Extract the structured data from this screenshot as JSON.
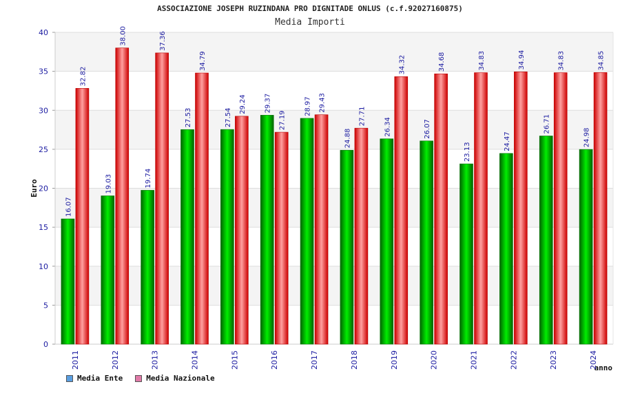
{
  "chart_data": {
    "type": "bar",
    "title": "ASSOCIAZIONE JOSEPH RUZINDANA PRO DIGNITADE ONLUS (c.f.92027160875)",
    "subtitle": "Media Importi",
    "xlabel": "anno",
    "ylabel": "Euro",
    "ylim": [
      0,
      40
    ],
    "yticks": [
      0,
      5,
      10,
      15,
      20,
      25,
      30,
      35,
      40
    ],
    "categories": [
      "2011",
      "2012",
      "2013",
      "2014",
      "2015",
      "2016",
      "2017",
      "2018",
      "2019",
      "2020",
      "2021",
      "2022",
      "2023",
      "2024"
    ],
    "series": [
      {
        "name": "Media Ente",
        "color": "#00c000",
        "values": [
          16.07,
          19.03,
          19.74,
          27.53,
          27.54,
          29.37,
          28.97,
          24.88,
          26.34,
          26.07,
          23.13,
          24.47,
          26.71,
          24.98
        ],
        "labels": [
          "16.07",
          "19.03",
          "19.74",
          "27.53",
          "27.54",
          "29.37",
          "28.97",
          "24.88",
          "26.34",
          "26.07",
          "23.13",
          "24.47",
          "26.71",
          "24.98"
        ]
      },
      {
        "name": "Media Nazionale",
        "color": "#ee1111",
        "values": [
          32.82,
          38.0,
          37.36,
          34.79,
          29.24,
          27.19,
          29.43,
          27.71,
          34.32,
          34.68,
          34.83,
          34.94,
          34.83,
          34.85
        ],
        "labels": [
          "32.82",
          "38.00",
          "37.36",
          "34.79",
          "29.24",
          "27.19",
          "29.43",
          "27.71",
          "34.32",
          "34.68",
          "34.83",
          "34.94",
          "34.83",
          "34.85"
        ]
      }
    ],
    "legend": [
      {
        "label": "Media Ente",
        "color": "#5a9ee0"
      },
      {
        "label": "Media Nazionale",
        "color": "#e07aa8"
      }
    ],
    "grid": true
  }
}
